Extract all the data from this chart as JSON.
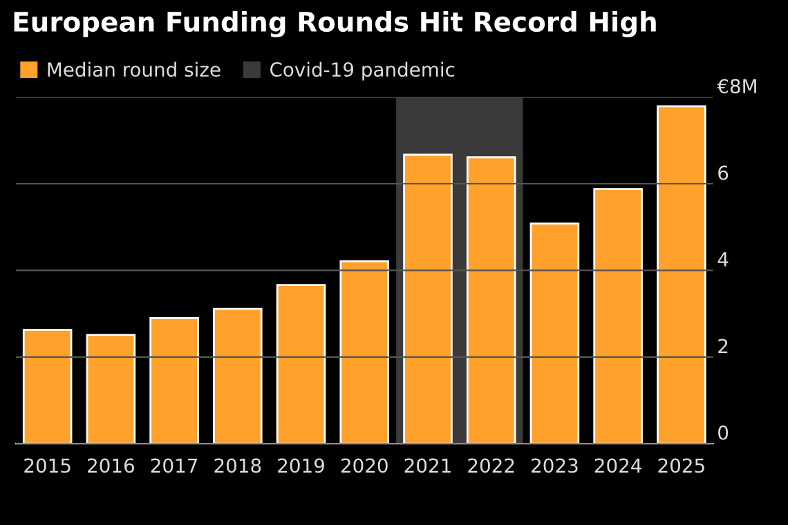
{
  "chart_data": {
    "type": "bar",
    "title": "European Funding Rounds Hit Record High",
    "categories": [
      "2015",
      "2016",
      "2017",
      "2018",
      "2019",
      "2020",
      "2021",
      "2022",
      "2023",
      "2024",
      "2025"
    ],
    "series": [
      {
        "name": "Median round size",
        "color": "#ffa12b",
        "values": [
          2.63,
          2.51,
          2.9,
          3.11,
          3.66,
          4.21,
          6.67,
          6.61,
          5.08,
          5.88,
          7.79
        ]
      }
    ],
    "bands": [
      {
        "axis": "x",
        "from": "2021",
        "to": "2022",
        "label": "Covid-19 pandemic",
        "color": "#3a3a3a"
      }
    ],
    "ylim": [
      0,
      8
    ],
    "yticks": [
      0,
      2,
      4,
      6,
      {
        "value": 8,
        "label": "€8M"
      }
    ],
    "grid": "y",
    "legend": "top left"
  }
}
